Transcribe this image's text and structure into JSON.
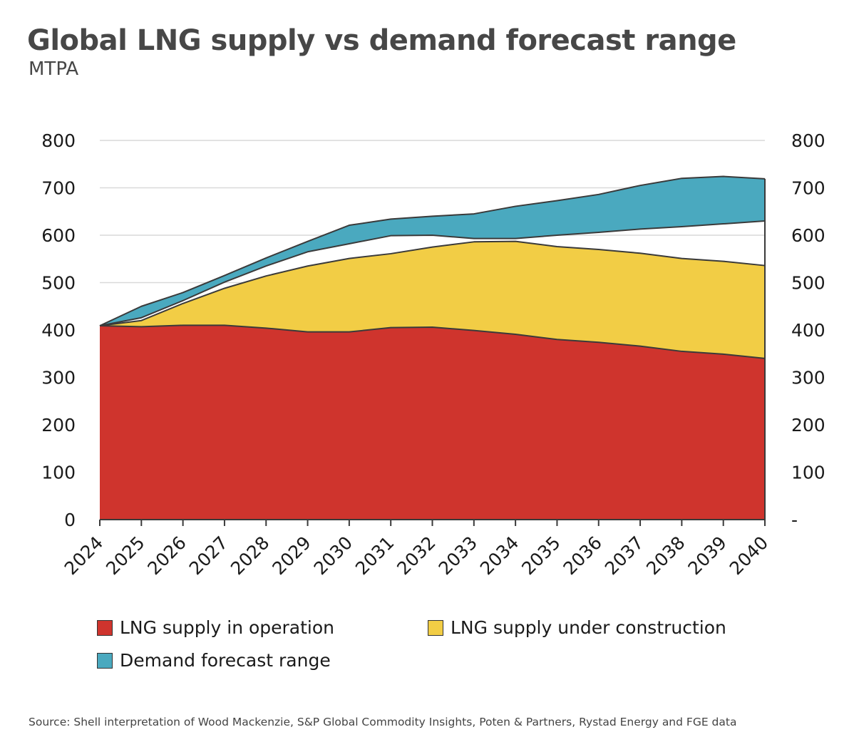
{
  "title": "Global LNG supply vs demand forecast range",
  "subtitle": "MTPA",
  "source": "Source: Shell interpretation of Wood Mackenzie, S&P Global Commodity Insights, Poten & Partners, Rystad Energy and FGE data",
  "chart_data": {
    "type": "area",
    "categories": [
      "2024",
      "2025",
      "2026",
      "2027",
      "2028",
      "2029",
      "2030",
      "2031",
      "2032",
      "2033",
      "2034",
      "2035",
      "2036",
      "2037",
      "2038",
      "2039",
      "2040"
    ],
    "ylim": [
      0,
      800
    ],
    "grid": true,
    "left_tick_labels": [
      "0",
      "100",
      "200",
      "300",
      "400",
      "500",
      "600",
      "700",
      "800"
    ],
    "right_tick_labels": [
      "-",
      "100",
      "200",
      "300",
      "400",
      "500",
      "600",
      "700",
      "800"
    ],
    "legend_position": "bottom",
    "colors": {
      "operation": "#cf342d",
      "construction": "#f2cd45",
      "demand": "#4aa9bf",
      "overlap": "#5aa58f"
    },
    "series": [
      {
        "name": "LNG supply in operation",
        "values": [
          409,
          407,
          410,
          410,
          404,
          396,
          396,
          405,
          406,
          399,
          391,
          380,
          374,
          366,
          355,
          349,
          340
        ]
      },
      {
        "name": "LNG supply under construction",
        "values": [
          0,
          13,
          46,
          78,
          110,
          139,
          155,
          156,
          169,
          187,
          196,
          196,
          196,
          196,
          196,
          196,
          196
        ],
        "totals": [
          409,
          420,
          456,
          488,
          514,
          535,
          551,
          561,
          575,
          586,
          587,
          576,
          570,
          562,
          551,
          545,
          536
        ]
      },
      {
        "name": "Demand forecast range",
        "low": [
          409,
          426,
          462,
          501,
          535,
          565,
          582,
          599,
          600,
          593,
          593,
          600,
          606,
          613,
          618,
          624,
          630
        ],
        "high": [
          409,
          450,
          479,
          515,
          552,
          587,
          621,
          634,
          640,
          645,
          661,
          673,
          686,
          705,
          720,
          724,
          719
        ]
      }
    ]
  }
}
